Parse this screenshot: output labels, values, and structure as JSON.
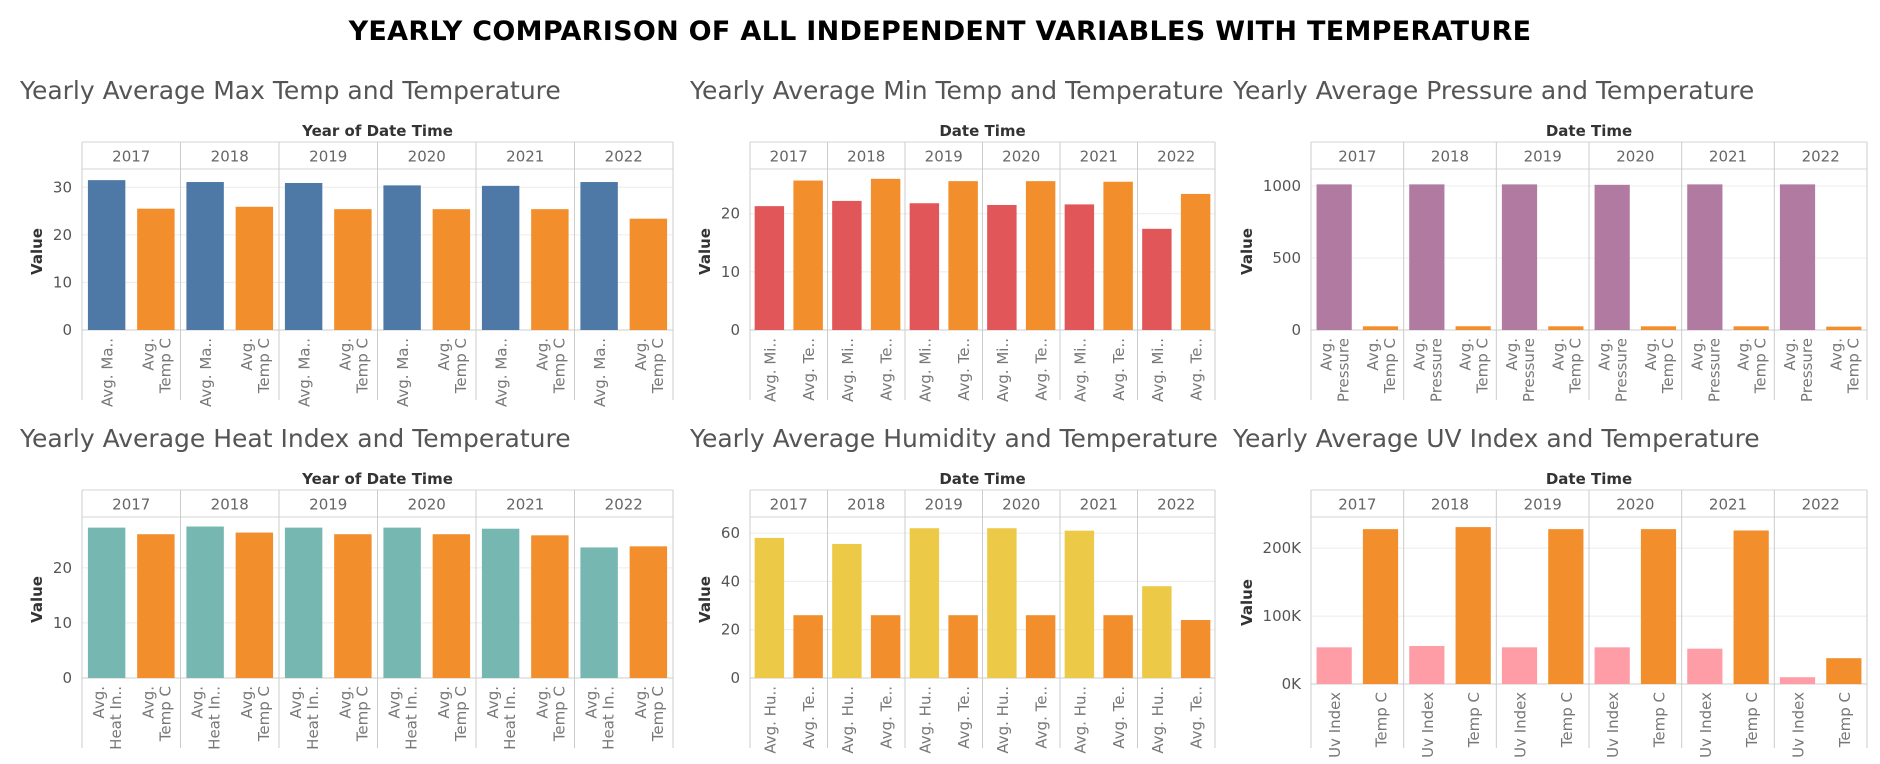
{
  "title": "YEARLY COMPARISON OF ALL INDEPENDENT VARIABLES WITH TEMPERATURE",
  "colors": {
    "temp": "#f28e2b",
    "max_temp": "#4e79a7",
    "min_temp": "#e15759",
    "pressure": "#b07aa1",
    "heat_index": "#76b7b2",
    "humidity": "#edc948",
    "uv_index": "#ff9da7"
  },
  "chart_data": [
    {
      "type": "bar",
      "title": "Yearly Average Max Temp and Temperature",
      "column_header": "Year of Date Time",
      "ylabel": "Value",
      "categories": [
        "2017",
        "2018",
        "2019",
        "2020",
        "2021",
        "2022"
      ],
      "measure_labels": [
        [
          "Avg. Ma.."
        ],
        [
          "Avg.",
          "Temp C"
        ]
      ],
      "ylim": [
        0,
        33
      ],
      "yticks": [
        0,
        10,
        20,
        30
      ],
      "ytick_labels": [
        "0",
        "10",
        "20",
        "30"
      ],
      "series": [
        {
          "name": "Avg. Max Temp",
          "color": "#4e79a7",
          "values": [
            31.5,
            31.1,
            30.9,
            30.4,
            30.3,
            31.1
          ]
        },
        {
          "name": "Avg. Temp C",
          "color": "#f28e2b",
          "values": [
            25.5,
            25.9,
            25.4,
            25.4,
            25.4,
            23.4
          ]
        }
      ]
    },
    {
      "type": "bar",
      "title": "Yearly Average Min Temp and Temperature",
      "column_header": "Date Time",
      "ylabel": "Value",
      "categories": [
        "2017",
        "2018",
        "2019",
        "2020",
        "2021",
        "2022"
      ],
      "measure_labels": [
        [
          "Avg. Mi.."
        ],
        [
          "Avg. Te.."
        ]
      ],
      "ylim": [
        0,
        27
      ],
      "yticks": [
        0,
        10,
        20
      ],
      "ytick_labels": [
        "0",
        "10",
        "20"
      ],
      "series": [
        {
          "name": "Avg. Min Temp",
          "color": "#e15759",
          "values": [
            21.3,
            22.2,
            21.8,
            21.5,
            21.6,
            17.4
          ]
        },
        {
          "name": "Avg. Temp C",
          "color": "#f28e2b",
          "values": [
            25.7,
            26.0,
            25.6,
            25.6,
            25.5,
            23.4
          ]
        }
      ]
    },
    {
      "type": "bar",
      "title": "Yearly Average Pressure and Temperature",
      "column_header": "Date Time",
      "ylabel": "Value",
      "categories": [
        "2017",
        "2018",
        "2019",
        "2020",
        "2021",
        "2022"
      ],
      "measure_labels": [
        [
          "Avg.",
          "Pressure"
        ],
        [
          "Avg.",
          "Temp C"
        ]
      ],
      "ylim": [
        0,
        1090
      ],
      "yticks": [
        0,
        500,
        1000
      ],
      "ytick_labels": [
        "0",
        "500",
        "1000"
      ],
      "series": [
        {
          "name": "Avg. Pressure",
          "color": "#b07aa1",
          "values": [
            1011,
            1011,
            1011,
            1008,
            1011,
            1011
          ]
        },
        {
          "name": "Avg. Temp C",
          "color": "#f28e2b",
          "values": [
            25.5,
            25.9,
            25.4,
            25.4,
            25.4,
            23.4
          ]
        }
      ]
    },
    {
      "type": "bar",
      "title": "Yearly Average Heat Index and Temperature",
      "column_header": "Year of Date Time",
      "ylabel": "Value",
      "categories": [
        "2017",
        "2018",
        "2019",
        "2020",
        "2021",
        "2022"
      ],
      "measure_labels": [
        [
          "Avg.",
          "Heat In.."
        ],
        [
          "Avg.",
          "Temp C"
        ]
      ],
      "ylim": [
        0,
        28.5
      ],
      "yticks": [
        0,
        10,
        20
      ],
      "ytick_labels": [
        "0",
        "10",
        "20"
      ],
      "series": [
        {
          "name": "Avg. Heat Index",
          "color": "#76b7b2",
          "values": [
            27.3,
            27.5,
            27.3,
            27.3,
            27.1,
            23.7
          ]
        },
        {
          "name": "Avg. Temp C",
          "color": "#f28e2b",
          "values": [
            26.1,
            26.4,
            26.1,
            26.1,
            25.9,
            23.9
          ]
        }
      ]
    },
    {
      "type": "bar",
      "title": "Yearly Average Humidity and Temperature",
      "column_header": "Date Time",
      "ylabel": "Value",
      "categories": [
        "2017",
        "2018",
        "2019",
        "2020",
        "2021",
        "2022"
      ],
      "measure_labels": [
        [
          "Avg. Hu.."
        ],
        [
          "Avg. Te.."
        ]
      ],
      "ylim": [
        0,
        65
      ],
      "yticks": [
        0,
        20,
        40,
        60
      ],
      "ytick_labels": [
        "0",
        "20",
        "40",
        "60"
      ],
      "series": [
        {
          "name": "Avg. Humidity",
          "color": "#edc948",
          "values": [
            58,
            55.5,
            62,
            62,
            61,
            38
          ]
        },
        {
          "name": "Avg. Temp C",
          "color": "#f28e2b",
          "values": [
            26,
            26,
            26,
            26,
            26,
            24
          ]
        }
      ]
    },
    {
      "type": "bar",
      "title": "Yearly Average UV Index and Temperature",
      "column_header": "Date Time",
      "ylabel": "Value",
      "categories": [
        "2017",
        "2018",
        "2019",
        "2020",
        "2021",
        "2022"
      ],
      "measure_labels": [
        [
          "Uv Index"
        ],
        [
          "Temp C"
        ]
      ],
      "ylim": [
        0,
        240000
      ],
      "yticks": [
        0,
        100000,
        200000
      ],
      "ytick_labels": [
        "0K",
        "100K",
        "200K"
      ],
      "series": [
        {
          "name": "Uv Index",
          "color": "#ff9da7",
          "values": [
            54000,
            56000,
            54000,
            54000,
            52000,
            10000
          ]
        },
        {
          "name": "Temp C",
          "color": "#f28e2b",
          "values": [
            228000,
            231000,
            228000,
            228000,
            226000,
            38000
          ]
        }
      ]
    }
  ]
}
